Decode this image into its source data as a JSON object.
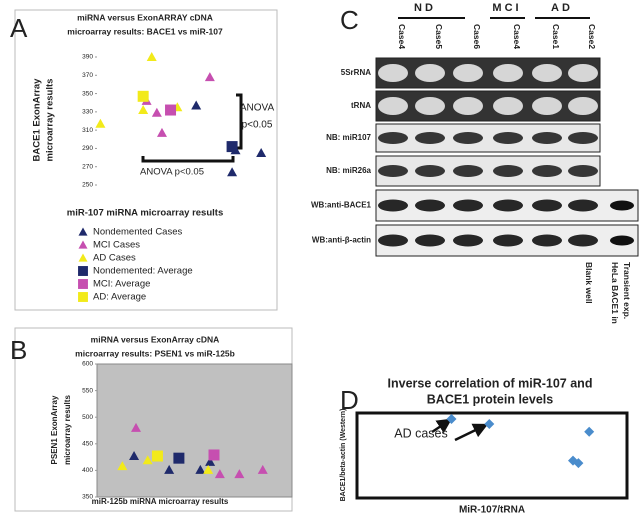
{
  "panel_labels": [
    "A",
    "B",
    "C",
    "D"
  ],
  "chart_data": [
    {
      "type": "scatter",
      "title": [
        "miRNA versus ExonARRAY cDNA",
        "microarray results: BACE1 vs miR-107"
      ],
      "y_label": [
        "BACE1 ExonArray",
        "microarray results"
      ],
      "x_label": "miR-107 miRNA microarray results",
      "annotations": [
        "ANOVA p<0.05",
        "ANOVA",
        "p<0.05"
      ],
      "xlim": [
        0,
        100
      ],
      "ylim": [
        250,
        390
      ],
      "yticks": [
        250,
        270,
        290,
        310,
        330,
        350,
        370,
        390
      ],
      "series": [
        {
          "name": "Nondemented Cases",
          "color": "#1f2a6b",
          "marker": "triangle",
          "x": [
            58,
            81,
            96,
            79
          ],
          "values": [
            337,
            288,
            285,
            264
          ]
        },
        {
          "name": "MCI Cases",
          "color": "#c64fb0",
          "marker": "triangle",
          "x": [
            66,
            29,
            35,
            38
          ],
          "values": [
            368,
            342,
            329,
            307
          ]
        },
        {
          "name": "AD Cases",
          "color": "#f2ea1a",
          "marker": "triangle",
          "x": [
            32,
            2,
            27,
            47
          ],
          "values": [
            390,
            317,
            332,
            335
          ]
        },
        {
          "name": "Nondemented: Average",
          "color": "#1f2a6b",
          "marker": "square",
          "x": [
            79
          ],
          "values": [
            292
          ]
        },
        {
          "name": "MCI: Average",
          "color": "#c64fb0",
          "marker": "square",
          "x": [
            43
          ],
          "values": [
            332
          ]
        },
        {
          "name": "AD: Average",
          "color": "#f2ea1a",
          "marker": "square",
          "x": [
            27
          ],
          "values": [
            347
          ]
        }
      ]
    },
    {
      "type": "scatter",
      "title": [
        "miRNA versus ExonArray cDNA",
        "microarray results: PSEN1 vs miR-125b"
      ],
      "y_label": [
        "PSEN1 ExonArray",
        "microarray results"
      ],
      "x_label": "miR-125b miRNA microarray results",
      "xlim": [
        0,
        100
      ],
      "ylim": [
        350,
        600
      ],
      "yticks": [
        350,
        400,
        450,
        500,
        550,
        600
      ],
      "plot_background": "#c0c0c0",
      "series": [
        {
          "color": "#1f2a6b",
          "marker": "triangle",
          "x": [
            19,
            37,
            53,
            58
          ],
          "values": [
            427,
            401,
            401,
            416
          ]
        },
        {
          "color": "#c64fb0",
          "marker": "triangle",
          "x": [
            20,
            63,
            73,
            85
          ],
          "values": [
            480,
            393,
            393,
            401
          ]
        },
        {
          "color": "#f2ea1a",
          "marker": "triangle",
          "x": [
            13,
            26,
            57
          ],
          "values": [
            408,
            419,
            401
          ]
        },
        {
          "color": "#1f2a6b",
          "marker": "square",
          "x": [
            42
          ],
          "values": [
            423
          ]
        },
        {
          "color": "#c64fb0",
          "marker": "square",
          "x": [
            60
          ],
          "values": [
            429
          ]
        },
        {
          "color": "#f2ea1a",
          "marker": "square",
          "x": [
            31
          ],
          "values": [
            427
          ]
        }
      ]
    },
    {
      "type": "scatter",
      "title": [
        "Inverse correlation of miR-107 and",
        "BACE1 protein levels"
      ],
      "y_label": [
        "BACE1/beta-actin (Western)"
      ],
      "x_label": "MiR-107/tRNA",
      "annotations": [
        "AD cases"
      ],
      "xlim": [
        0,
        100
      ],
      "ylim": [
        0,
        100
      ],
      "series": [
        {
          "color": "#4a8ccc",
          "marker": "diamond",
          "x": [
            35,
            49,
            86,
            80,
            82
          ],
          "values": [
            93,
            87,
            78,
            44,
            41
          ]
        }
      ]
    }
  ],
  "blot": {
    "groups": [
      "ND",
      "MCI",
      "AD"
    ],
    "lanes": [
      "Case4",
      "Case5",
      "Case6",
      "Case4",
      "Case1",
      "Case2"
    ],
    "rows": [
      "5SrRNA",
      "tRNA",
      "NB: miR107",
      "NB: miR26a",
      "WB:anti-BACE1",
      "WB:anti-β-actin"
    ],
    "extra_lanes": [
      [
        "Blank well"
      ],
      [
        "HeLa  BACE1 in",
        "Transient exp."
      ]
    ]
  }
}
